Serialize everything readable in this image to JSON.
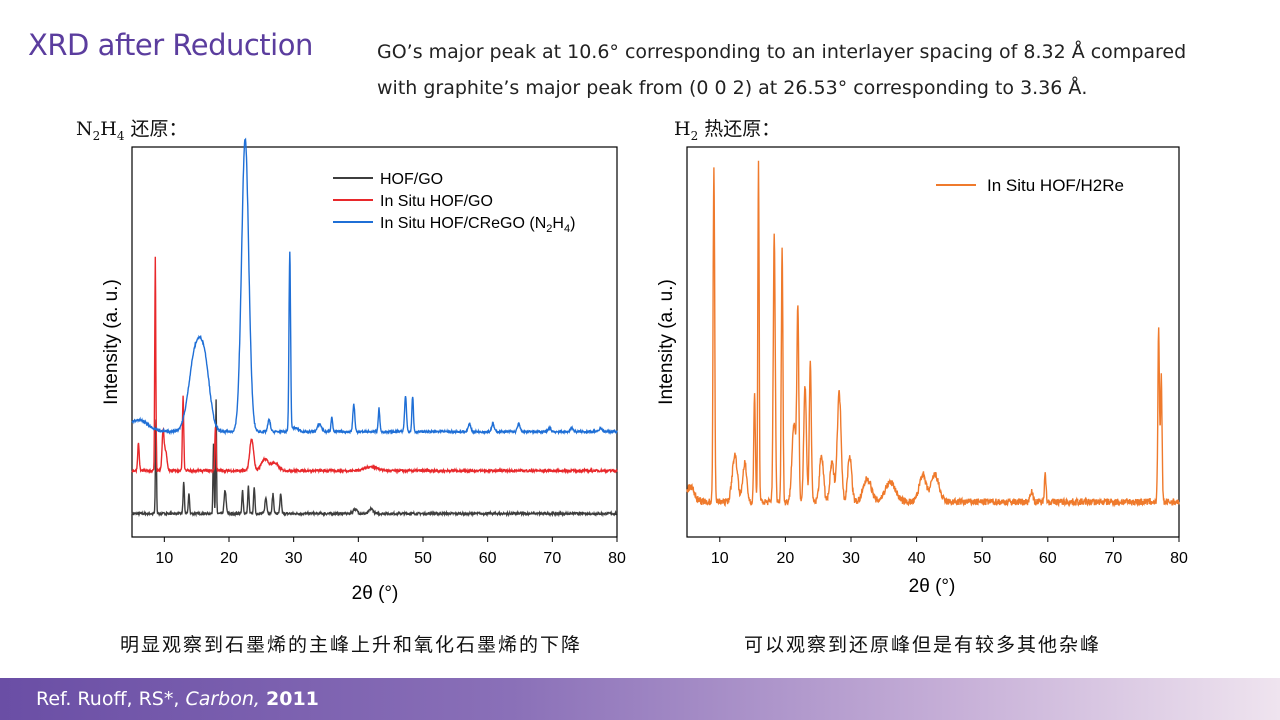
{
  "slide": {
    "title": "XRD after Reduction",
    "description_line1": "GO’s major peak at 10.6° corresponding to an interlayer spacing of 8.32 Å compared",
    "description_line2": "with graphite’s major peak from (0 0 2) at 26.53° corresponding to 3.36 Å."
  },
  "panels": {
    "left": {
      "heading_main": "N",
      "heading_sub1": "2",
      "heading_mid": "H",
      "heading_sub2": "4",
      "heading_suffix": " 还原：",
      "caption": "明显观察到石墨烯的主峰上升和氧化石墨烯的下降"
    },
    "right": {
      "heading_main": "H",
      "heading_sub1": "2",
      "heading_suffix": " 热还原：",
      "caption": "可以观察到还原峰但是有较多其他杂峰"
    }
  },
  "footer": {
    "ref_prefix": "Ref. Ruoff, RS*, ",
    "journal": "Carbon,",
    "year": "2011"
  },
  "colors": {
    "title": "#5b3d9e",
    "hof_go": "#3d3d3d",
    "insitu_hof_go": "#e8282b",
    "insitu_hof_crego": "#1f6fd6",
    "insitu_hof_h2re": "#ef7a2c"
  },
  "chart_data": [
    {
      "type": "line",
      "xlabel": "2θ (°)",
      "ylabel": "Intensity (a. u.)",
      "xlim": [
        5,
        80
      ],
      "ylim": [
        0,
        1
      ],
      "xticks": [
        10,
        20,
        30,
        40,
        50,
        60,
        70,
        80
      ],
      "legend_position": "top-right",
      "series": [
        {
          "name": "HOF/GO",
          "color": "#3d3d3d",
          "baseline": 0.06,
          "peaks": [
            [
              8.7,
              0.24,
              0.08
            ],
            [
              13.0,
              0.08,
              0.1
            ],
            [
              13.8,
              0.05,
              0.1
            ],
            [
              17.6,
              0.18,
              0.08
            ],
            [
              18.0,
              0.29,
              0.07
            ],
            [
              19.4,
              0.06,
              0.15
            ],
            [
              22.1,
              0.06,
              0.1
            ],
            [
              23.0,
              0.07,
              0.1
            ],
            [
              23.9,
              0.07,
              0.1
            ],
            [
              25.7,
              0.04,
              0.15
            ],
            [
              26.8,
              0.05,
              0.12
            ],
            [
              28.0,
              0.05,
              0.12
            ],
            [
              39.5,
              0.012,
              0.3
            ],
            [
              42.0,
              0.012,
              0.3
            ]
          ]
        },
        {
          "name": "In Situ HOF/GO",
          "color": "#e8282b",
          "baseline": 0.17,
          "peaks": [
            [
              6.0,
              0.07,
              0.12
            ],
            [
              8.6,
              0.55,
              0.08
            ],
            [
              9.8,
              0.1,
              0.15
            ],
            [
              10.2,
              0.05,
              0.2
            ],
            [
              12.9,
              0.19,
              0.1
            ],
            [
              17.9,
              0.11,
              0.1
            ],
            [
              23.5,
              0.08,
              0.3
            ],
            [
              25.5,
              0.03,
              0.5
            ],
            [
              27.0,
              0.02,
              0.6
            ],
            [
              42.0,
              0.01,
              1.0
            ]
          ]
        },
        {
          "name": "In Situ HOF/CReGO (N2H4)",
          "label_main": "In Situ HOF/CReGO (N",
          "label_sub1": "2",
          "label_mid": "H",
          "label_sub2": "4",
          "label_end": ")",
          "color": "#1f6fd6",
          "baseline": 0.27,
          "peaks": [
            [
              6.0,
              0.03,
              1.5
            ],
            [
              14.8,
              0.2,
              1.0
            ],
            [
              16.3,
              0.14,
              0.8
            ],
            [
              22.5,
              0.75,
              0.55
            ],
            [
              26.2,
              0.03,
              0.2
            ],
            [
              29.4,
              0.46,
              0.12
            ],
            [
              30.2,
              0.01,
              0.5
            ],
            [
              34.0,
              0.02,
              0.3
            ],
            [
              35.9,
              0.04,
              0.12
            ],
            [
              39.3,
              0.07,
              0.15
            ],
            [
              43.2,
              0.06,
              0.12
            ],
            [
              47.3,
              0.09,
              0.15
            ],
            [
              48.4,
              0.09,
              0.12
            ],
            [
              57.2,
              0.02,
              0.2
            ],
            [
              60.8,
              0.02,
              0.2
            ],
            [
              64.8,
              0.02,
              0.2
            ],
            [
              69.6,
              0.01,
              0.2
            ],
            [
              73.0,
              0.01,
              0.2
            ],
            [
              77.5,
              0.01,
              0.2
            ]
          ]
        }
      ]
    },
    {
      "type": "line",
      "xlabel": "2θ (°)",
      "ylabel": "Intensity (a. u.)",
      "xlim": [
        5,
        80
      ],
      "ylim": [
        0,
        1
      ],
      "xticks": [
        10,
        20,
        30,
        40,
        50,
        60,
        70,
        80
      ],
      "legend_position": "top-right",
      "series": [
        {
          "name": "In Situ HOF/H2Re",
          "color": "#ef7a2c",
          "baseline": 0.09,
          "peaks": [
            [
              5.5,
              0.04,
              0.6
            ],
            [
              9.1,
              0.85,
              0.12
            ],
            [
              12.3,
              0.12,
              0.4
            ],
            [
              13.8,
              0.1,
              0.3
            ],
            [
              15.3,
              0.28,
              0.12
            ],
            [
              15.9,
              0.87,
              0.1
            ],
            [
              18.3,
              0.68,
              0.15
            ],
            [
              19.5,
              0.66,
              0.12
            ],
            [
              21.3,
              0.2,
              0.3
            ],
            [
              21.9,
              0.48,
              0.15
            ],
            [
              23.0,
              0.3,
              0.2
            ],
            [
              23.8,
              0.36,
              0.15
            ],
            [
              25.5,
              0.12,
              0.3
            ],
            [
              27.1,
              0.1,
              0.3
            ],
            [
              28.2,
              0.28,
              0.3
            ],
            [
              29.8,
              0.12,
              0.3
            ],
            [
              32.5,
              0.06,
              0.6
            ],
            [
              36.0,
              0.05,
              0.8
            ],
            [
              40.9,
              0.07,
              0.5
            ],
            [
              42.8,
              0.07,
              0.6
            ],
            [
              57.5,
              0.03,
              0.2
            ],
            [
              59.6,
              0.08,
              0.12
            ],
            [
              76.9,
              0.44,
              0.12
            ],
            [
              77.3,
              0.32,
              0.12
            ]
          ]
        }
      ]
    }
  ]
}
